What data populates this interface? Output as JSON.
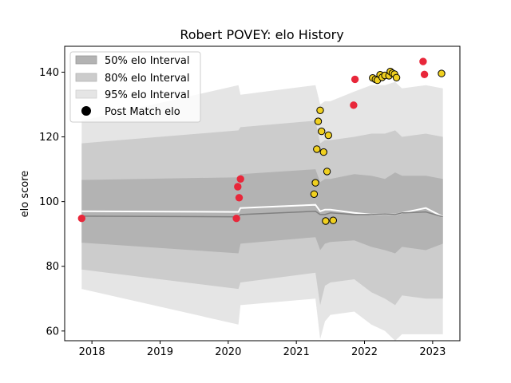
{
  "chart_data": {
    "type": "scatter",
    "title": "Robert POVEY: elo History",
    "xlabel": "",
    "ylabel": "elo score",
    "xlim": [
      2017.6,
      2023.4
    ],
    "ylim": [
      57,
      148
    ],
    "x_ticks": [
      2018,
      2019,
      2020,
      2021,
      2022,
      2023
    ],
    "x_tick_labels": [
      "2018",
      "2019",
      "2020",
      "2021",
      "2022",
      "2023"
    ],
    "y_ticks": [
      60,
      80,
      100,
      120,
      140
    ],
    "y_tick_labels": [
      "60",
      "80",
      "100",
      "120",
      "140"
    ],
    "grid": false,
    "legend_position": "top-left",
    "legend": [
      {
        "label": "50% elo Interval",
        "kind": "band50"
      },
      {
        "label": "80% elo Interval",
        "kind": "band80"
      },
      {
        "label": "95% elo Interval",
        "kind": "band95"
      },
      {
        "label": "Post Match elo",
        "kind": "marker"
      }
    ],
    "colors": {
      "band50": "#b3b3b3",
      "band80": "#cccccc",
      "band95": "#e5e5e5",
      "mean_line": "#808080",
      "white_line": "#ffffff",
      "point_yellow": "#f0d020",
      "point_red": "#e8273a",
      "point_edge": "#000000",
      "red_edge": "#e8273a"
    },
    "bands": {
      "x": [
        2017.85,
        2020.15,
        2020.18,
        2021.28,
        2021.35,
        2021.42,
        2021.5,
        2021.85,
        2022.1,
        2022.3,
        2022.45,
        2022.55,
        2022.9,
        2023.15
      ],
      "mean": [
        95.5,
        95.3,
        96,
        97,
        96,
        96,
        96.5,
        96,
        96,
        96.2,
        96,
        96.5,
        96.8,
        95.3
      ],
      "white": [
        97,
        96.8,
        98,
        99,
        97,
        97.5,
        97.5,
        96.5,
        96,
        96.2,
        96,
        96.5,
        98,
        95.3
      ],
      "p50": [
        [
          87.3,
          106.7
        ],
        [
          84,
          107.5
        ],
        [
          87,
          108.5
        ],
        [
          89,
          110
        ],
        [
          85,
          106
        ],
        [
          87,
          107
        ],
        [
          87.5,
          107
        ],
        [
          88,
          108.5
        ],
        [
          86,
          108
        ],
        [
          85,
          107
        ],
        [
          84,
          109
        ],
        [
          86,
          108
        ],
        [
          85,
          108
        ],
        [
          87,
          107
        ]
      ],
      "p80": [
        [
          79,
          118
        ],
        [
          73,
          122
        ],
        [
          75,
          123
        ],
        [
          78,
          125
        ],
        [
          68,
          118
        ],
        [
          74,
          119
        ],
        [
          75,
          119
        ],
        [
          76,
          120
        ],
        [
          72,
          121
        ],
        [
          70,
          121
        ],
        [
          68,
          122
        ],
        [
          71,
          120
        ],
        [
          70,
          121
        ],
        [
          70,
          120
        ]
      ],
      "p95": [
        [
          73,
          125
        ],
        [
          62,
          136
        ],
        [
          68,
          133
        ],
        [
          70,
          136
        ],
        [
          57.5,
          130
        ],
        [
          63,
          131
        ],
        [
          65,
          131
        ],
        [
          66,
          134
        ],
        [
          62,
          136
        ],
        [
          60,
          136
        ],
        [
          57,
          137
        ],
        [
          59,
          135
        ],
        [
          59,
          136
        ],
        [
          59,
          135
        ]
      ]
    },
    "points": [
      {
        "x": 2017.85,
        "y": 94.8,
        "color": "red"
      },
      {
        "x": 2020.12,
        "y": 94.8,
        "color": "red"
      },
      {
        "x": 2020.14,
        "y": 104.6,
        "color": "red"
      },
      {
        "x": 2020.16,
        "y": 101.2,
        "color": "red"
      },
      {
        "x": 2020.18,
        "y": 107.0,
        "color": "red"
      },
      {
        "x": 2021.26,
        "y": 102.3,
        "color": "yellow"
      },
      {
        "x": 2021.28,
        "y": 105.8,
        "color": "yellow"
      },
      {
        "x": 2021.3,
        "y": 116.2,
        "color": "yellow"
      },
      {
        "x": 2021.32,
        "y": 124.8,
        "color": "yellow"
      },
      {
        "x": 2021.35,
        "y": 128.2,
        "color": "yellow"
      },
      {
        "x": 2021.37,
        "y": 121.7,
        "color": "yellow"
      },
      {
        "x": 2021.4,
        "y": 115.3,
        "color": "yellow"
      },
      {
        "x": 2021.43,
        "y": 94.0,
        "color": "yellow"
      },
      {
        "x": 2021.45,
        "y": 109.3,
        "color": "yellow"
      },
      {
        "x": 2021.47,
        "y": 120.5,
        "color": "yellow"
      },
      {
        "x": 2021.54,
        "y": 94.2,
        "color": "yellow"
      },
      {
        "x": 2021.84,
        "y": 129.8,
        "color": "red"
      },
      {
        "x": 2021.86,
        "y": 137.8,
        "color": "red"
      },
      {
        "x": 2022.12,
        "y": 138.2,
        "color": "yellow"
      },
      {
        "x": 2022.16,
        "y": 137.8,
        "color": "yellow"
      },
      {
        "x": 2022.19,
        "y": 137.5,
        "color": "yellow"
      },
      {
        "x": 2022.23,
        "y": 139.2,
        "color": "yellow"
      },
      {
        "x": 2022.26,
        "y": 138.4,
        "color": "yellow"
      },
      {
        "x": 2022.3,
        "y": 139.0,
        "color": "yellow"
      },
      {
        "x": 2022.36,
        "y": 138.9,
        "color": "yellow"
      },
      {
        "x": 2022.38,
        "y": 140.2,
        "color": "yellow"
      },
      {
        "x": 2022.41,
        "y": 139.7,
        "color": "yellow"
      },
      {
        "x": 2022.44,
        "y": 139.4,
        "color": "yellow"
      },
      {
        "x": 2022.47,
        "y": 138.3,
        "color": "yellow"
      },
      {
        "x": 2022.86,
        "y": 143.3,
        "color": "red"
      },
      {
        "x": 2022.88,
        "y": 139.3,
        "color": "red"
      },
      {
        "x": 2023.13,
        "y": 139.6,
        "color": "yellow"
      }
    ]
  }
}
